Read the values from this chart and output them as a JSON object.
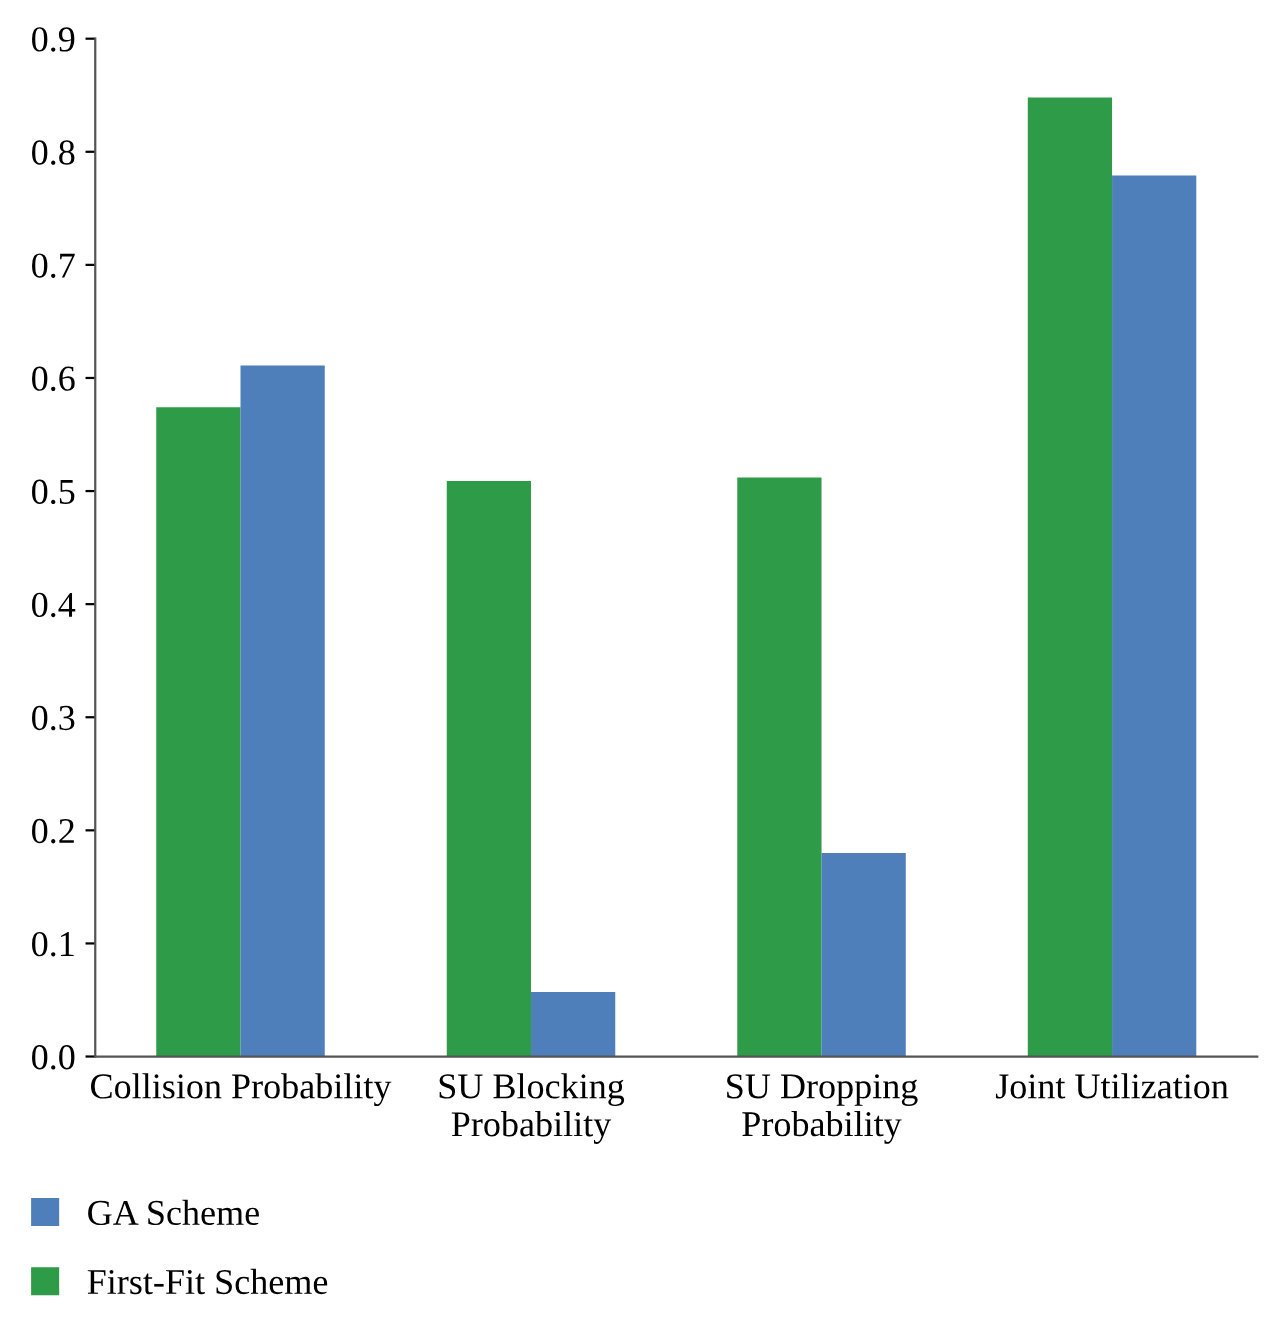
{
  "chart_data": {
    "type": "bar",
    "categories": [
      "Collision Probability",
      "SU Blocking\nProbability",
      "SU Dropping\nProbability",
      "Joint Utilization"
    ],
    "series": [
      {
        "name": "First-Fit Scheme",
        "color": "#2e9b48",
        "values": [
          0.574,
          0.509,
          0.512,
          0.848
        ]
      },
      {
        "name": "GA Scheme",
        "color": "#4f7fbb",
        "values": [
          0.611,
          0.057,
          0.18,
          0.779
        ]
      }
    ],
    "ylim": [
      0,
      0.9
    ],
    "yticks": [
      {
        "value": 0,
        "label": "0.0"
      },
      {
        "value": 0.1,
        "label": "0.1"
      },
      {
        "value": 0.2,
        "label": "0.2"
      },
      {
        "value": 0.3,
        "label": "0.3"
      },
      {
        "value": 0.4,
        "label": "0.4"
      },
      {
        "value": 0.5,
        "label": "0.5"
      },
      {
        "value": 0.6,
        "label": "0.6"
      },
      {
        "value": 0.7,
        "label": "0.7"
      },
      {
        "value": 0.8,
        "label": "0.8"
      },
      {
        "value": 0.9,
        "label": "0.9"
      }
    ],
    "grid": false,
    "legend": "bottom left"
  }
}
